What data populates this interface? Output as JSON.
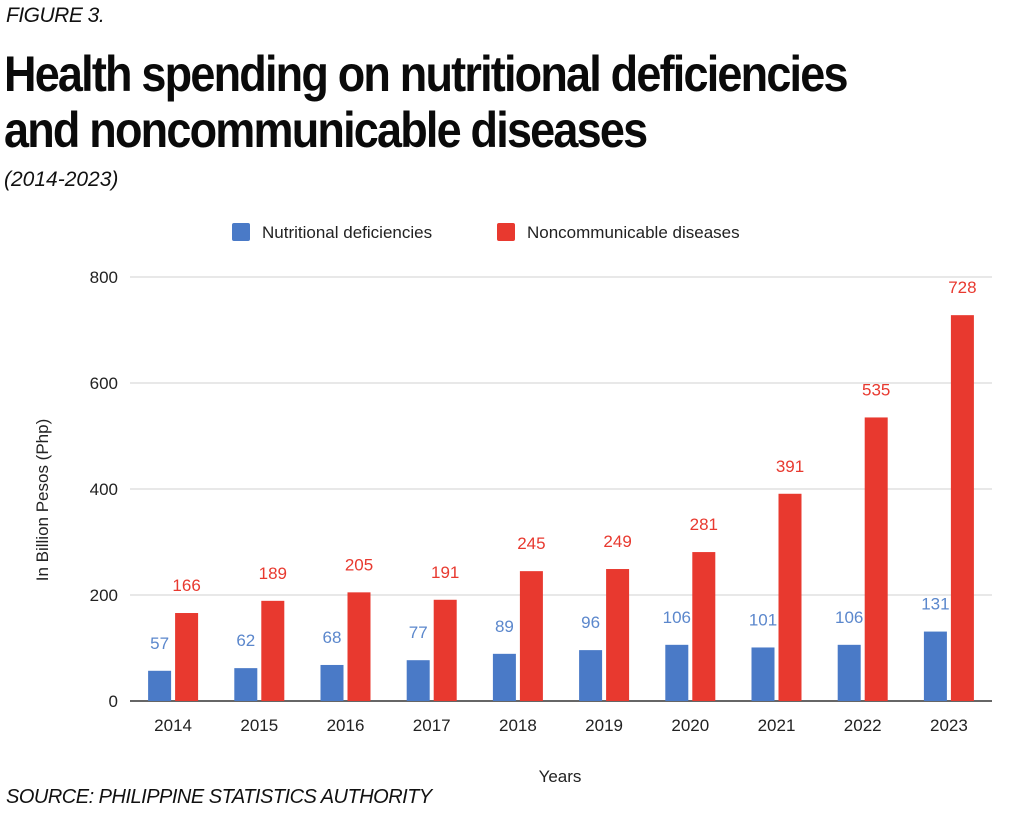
{
  "figure_label": "FIGURE 3.",
  "title_line1": "Health spending on nutritional deficiencies",
  "title_line2": "and noncommunicable diseases",
  "subtitle": "(2014-2023)",
  "source": "SOURCE: PHILIPPINE STATISTICS AUTHORITY",
  "chart_data": {
    "type": "bar",
    "categories": [
      "2014",
      "2015",
      "2016",
      "2017",
      "2018",
      "2019",
      "2020",
      "2021",
      "2022",
      "2023"
    ],
    "series": [
      {
        "name": "Nutritional deficiencies",
        "color": "#4a7ac7",
        "values": [
          57,
          62,
          68,
          77,
          89,
          96,
          106,
          101,
          106,
          131
        ]
      },
      {
        "name": "Noncommunicable diseases",
        "color": "#e8392f",
        "values": [
          166,
          189,
          205,
          191,
          245,
          249,
          281,
          391,
          535,
          728
        ]
      }
    ],
    "xlabel": "Years",
    "ylabel": "In Billion Pesos (Php)",
    "ylim": [
      0,
      800
    ],
    "yticks": [
      0,
      200,
      400,
      600,
      800
    ],
    "grid": true,
    "legend_position": "top-center",
    "label_colors": {
      "Nutritional deficiencies": "#5b87cc",
      "Noncommunicable diseases": "#e8392f"
    }
  }
}
